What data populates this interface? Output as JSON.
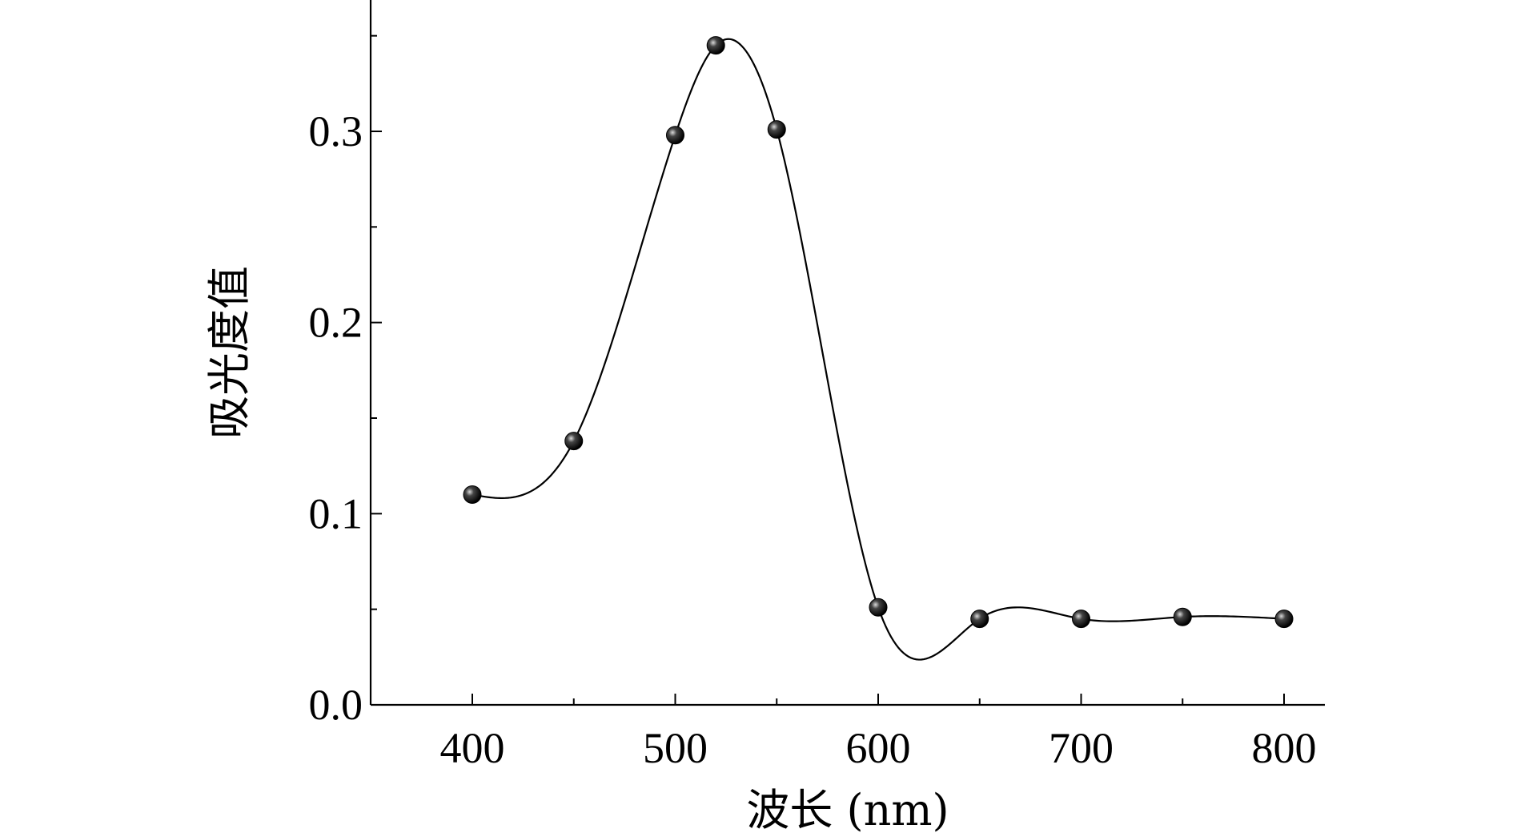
{
  "chart_data": {
    "type": "scatter",
    "title": "",
    "xlabel": "波长 (nm)",
    "ylabel": "吸光度值",
    "xlim": [
      350,
      820
    ],
    "ylim": [
      0,
      0.365
    ],
    "x_ticks": [
      400,
      500,
      600,
      700,
      800
    ],
    "x_tick_labels": [
      "400",
      "500",
      "600",
      "700",
      "800"
    ],
    "y_ticks": [
      0,
      0.1,
      0.2,
      0.3
    ],
    "y_tick_labels": [
      "0.0",
      "0.1",
      "0.2",
      "0.3"
    ],
    "y_minor_ticks": [
      0.05,
      0.15,
      0.25,
      0.35
    ],
    "x_minor_ticks": [
      450,
      550,
      650,
      750
    ],
    "grid": false,
    "legend": "none",
    "smooth_curve": true,
    "series": [
      {
        "x": [
          400,
          450,
          500,
          520,
          550,
          600,
          650,
          700,
          750,
          800
        ],
        "y": [
          0.11,
          0.138,
          0.298,
          0.345,
          0.301,
          0.051,
          0.045,
          0.045,
          0.046,
          0.045
        ]
      }
    ],
    "colors": {
      "marker": "#1a1a1a",
      "line": "#000000"
    }
  }
}
